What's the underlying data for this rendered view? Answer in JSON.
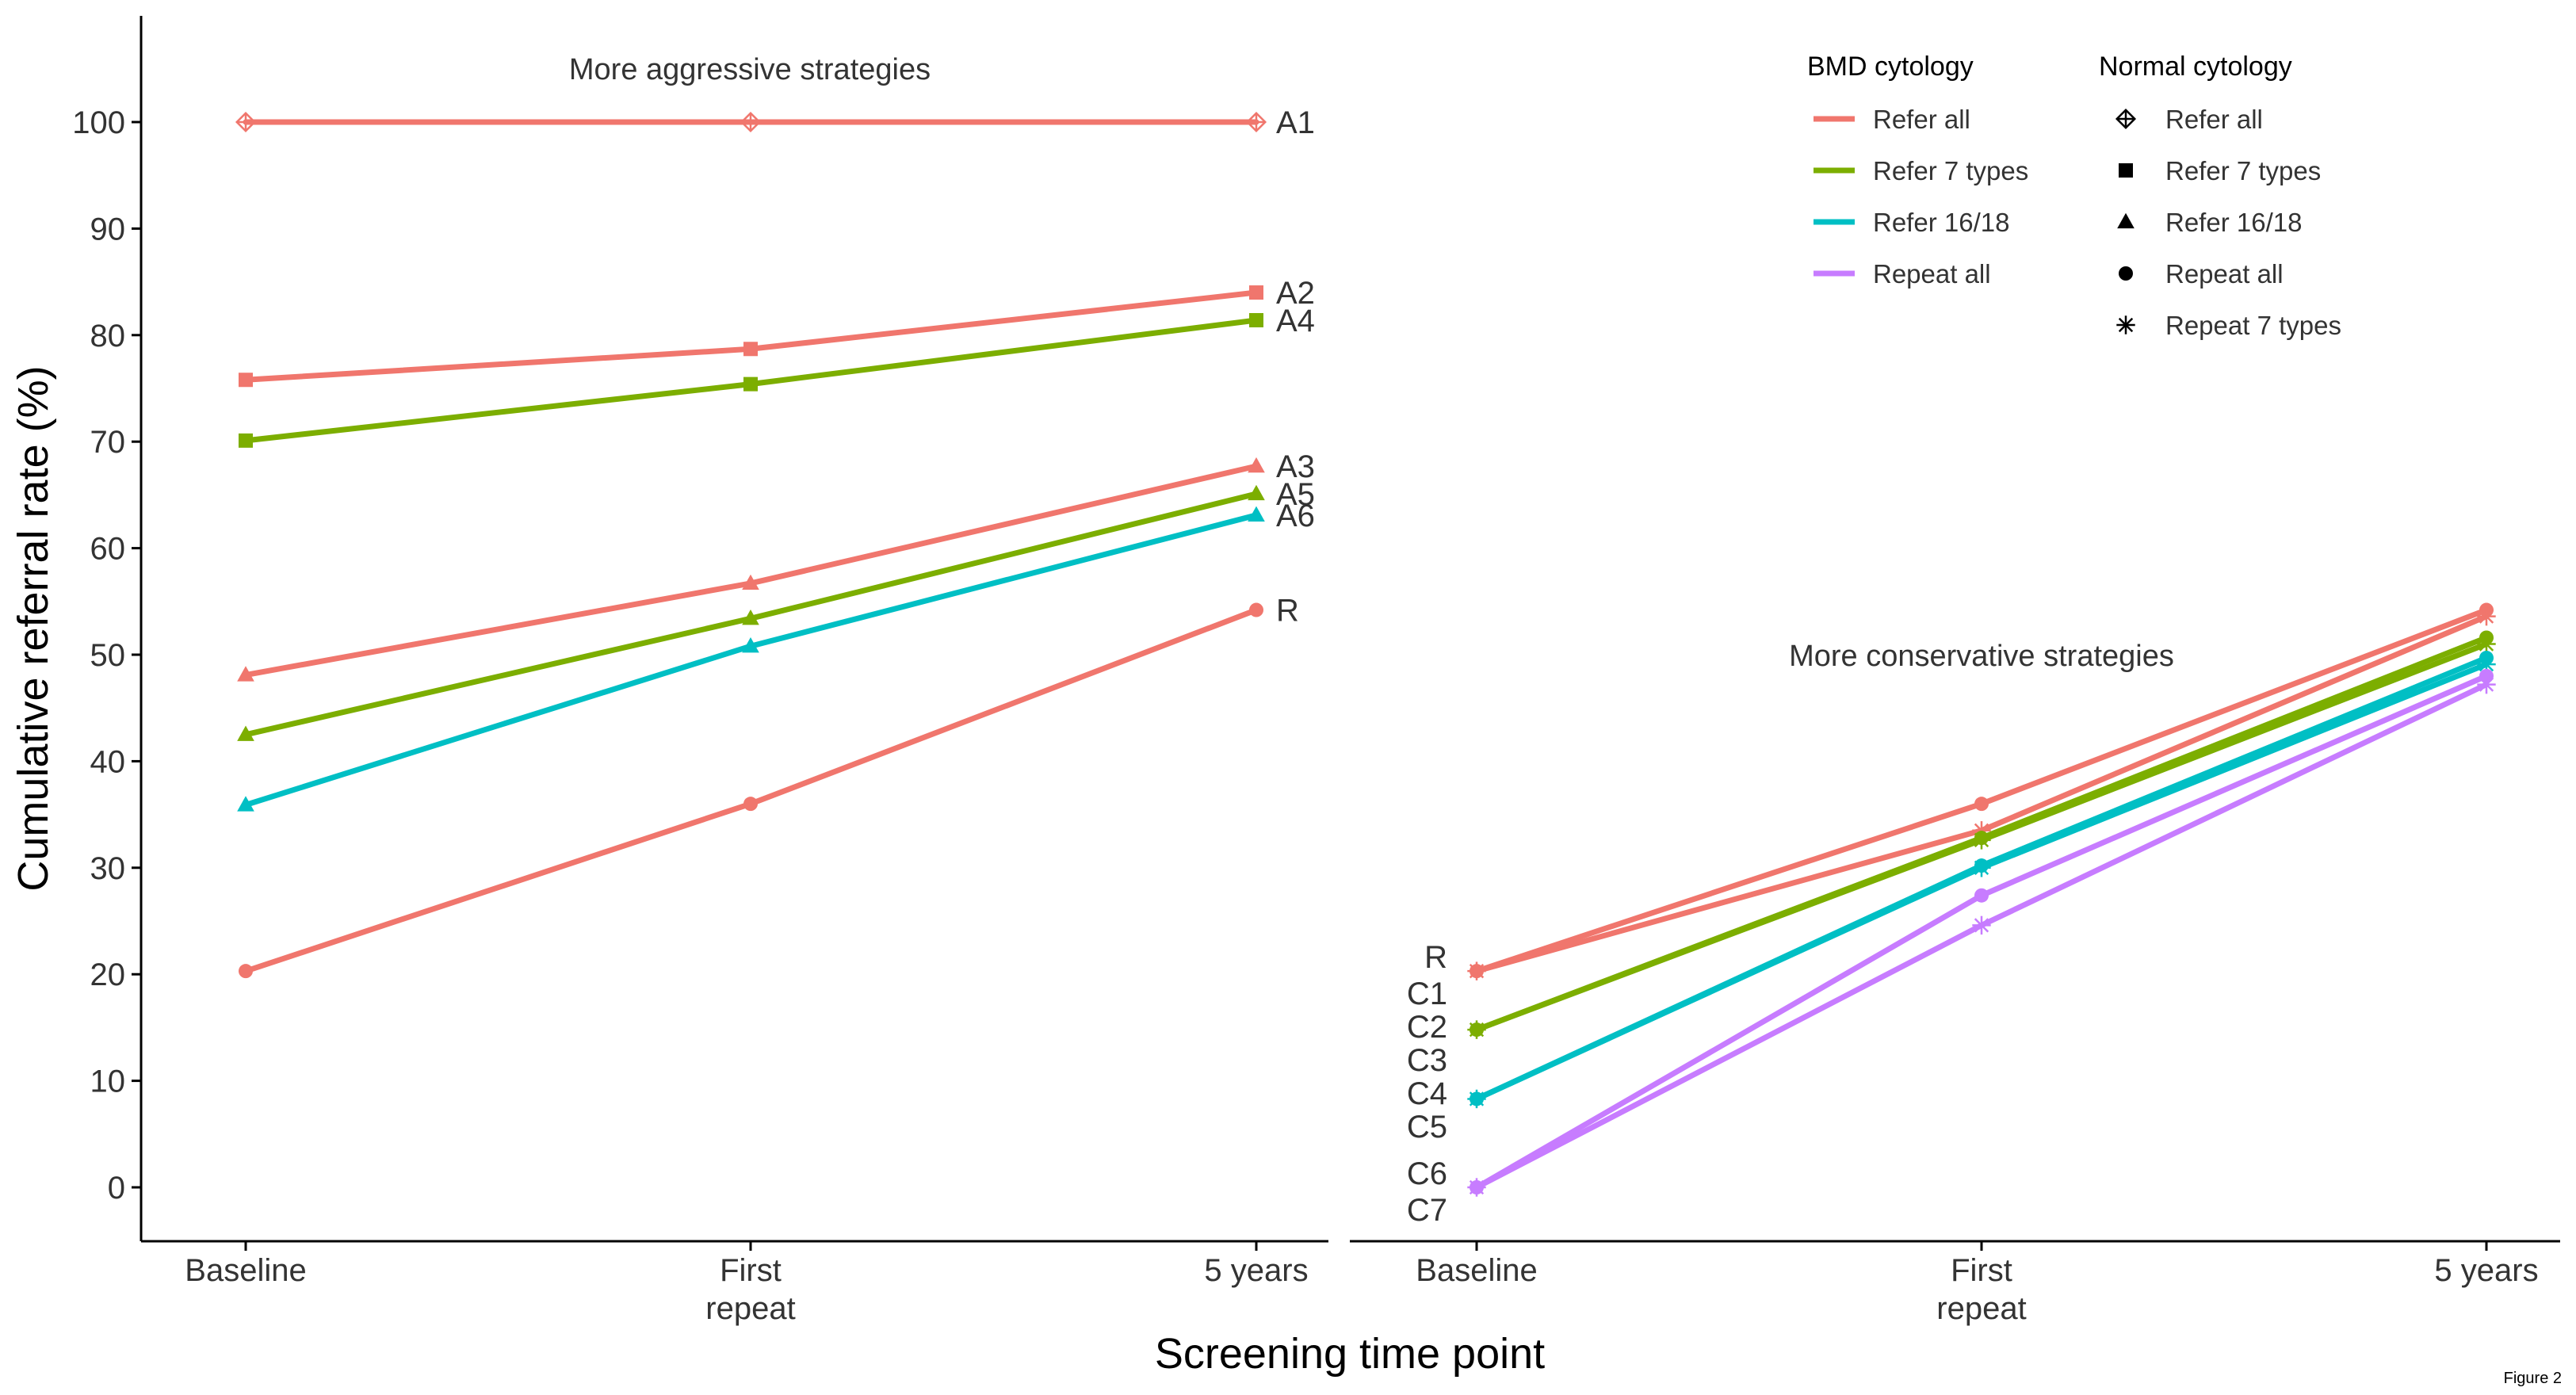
{
  "figure_label": "Figure 2",
  "shared_axes": {
    "ylabel": "Cumulative referral rate (%)",
    "xlabel": "Screening time point",
    "x_ticks": [
      "Baseline",
      "First\nrepeat",
      "5 years"
    ],
    "y_ticks": [
      0,
      10,
      20,
      30,
      40,
      50,
      60,
      70,
      80,
      90,
      100
    ],
    "ylim": [
      -5,
      110
    ]
  },
  "colors": {
    "refer_all": "#F0766D",
    "refer_7_types": "#7CAE00",
    "refer_16_18": "#00BFC4",
    "repeat_all": "#C77CFF",
    "axis": "#000000",
    "text": "#333333"
  },
  "legend": {
    "bmd": {
      "title": "BMD cytology",
      "items": [
        {
          "label": "Refer all",
          "color_key": "refer_all"
        },
        {
          "label": "Refer 7 types",
          "color_key": "refer_7_types"
        },
        {
          "label": "Refer 16/18",
          "color_key": "refer_16_18"
        },
        {
          "label": "Repeat all",
          "color_key": "repeat_all"
        }
      ]
    },
    "normal": {
      "title": "Normal cytology",
      "items": [
        {
          "label": "Refer all",
          "shape": "diamond-cross"
        },
        {
          "label": "Refer 7 types",
          "shape": "square"
        },
        {
          "label": "Refer 16/18",
          "shape": "triangle"
        },
        {
          "label": "Repeat all",
          "shape": "circle"
        },
        {
          "label": "Repeat 7 types",
          "shape": "asterisk"
        }
      ]
    }
  },
  "chart_data": [
    {
      "type": "line",
      "annotation": "More aggressive strategies",
      "categories": [
        "Baseline",
        "First repeat",
        "5 years"
      ],
      "series": [
        {
          "name": "A1",
          "bmd": "refer_all",
          "normal": "diamond-cross",
          "values": [
            100,
            100,
            100
          ]
        },
        {
          "name": "A2",
          "bmd": "refer_all",
          "normal": "square",
          "values": [
            75.8,
            78.7,
            84.0
          ]
        },
        {
          "name": "A4",
          "bmd": "refer_7_types",
          "normal": "square",
          "values": [
            70.1,
            75.4,
            81.4
          ]
        },
        {
          "name": "A3",
          "bmd": "refer_all",
          "normal": "triangle",
          "values": [
            48.1,
            56.7,
            67.7
          ]
        },
        {
          "name": "A5",
          "bmd": "refer_7_types",
          "normal": "triangle",
          "values": [
            42.5,
            53.4,
            65.1
          ]
        },
        {
          "name": "A6",
          "bmd": "refer_16_18",
          "normal": "triangle",
          "values": [
            35.9,
            50.8,
            63.1
          ]
        },
        {
          "name": "R",
          "bmd": "refer_all",
          "normal": "circle",
          "values": [
            20.3,
            36.0,
            54.2
          ]
        }
      ]
    },
    {
      "type": "line",
      "annotation": "More conservative strategies",
      "categories": [
        "Baseline",
        "First repeat",
        "5 years"
      ],
      "series": [
        {
          "name": "R",
          "bmd": "refer_all",
          "normal": "circle",
          "values": [
            20.3,
            36.0,
            54.2
          ]
        },
        {
          "name": "C1",
          "bmd": "refer_all",
          "normal": "asterisk",
          "values": [
            20.3,
            33.5,
            53.6
          ]
        },
        {
          "name": "C2",
          "bmd": "refer_7_types",
          "normal": "circle",
          "values": [
            14.8,
            32.8,
            51.6
          ]
        },
        {
          "name": "C3",
          "bmd": "refer_7_types",
          "normal": "asterisk",
          "values": [
            14.8,
            32.6,
            51.0
          ]
        },
        {
          "name": "C4",
          "bmd": "refer_16_18",
          "normal": "circle",
          "values": [
            8.3,
            30.2,
            49.7
          ]
        },
        {
          "name": "C5",
          "bmd": "refer_16_18",
          "normal": "asterisk",
          "values": [
            8.3,
            30.0,
            49.1
          ]
        },
        {
          "name": "C6",
          "bmd": "repeat_all",
          "normal": "circle",
          "values": [
            0,
            27.4,
            48.0
          ]
        },
        {
          "name": "C7",
          "bmd": "repeat_all",
          "normal": "asterisk",
          "values": [
            0,
            24.6,
            47.2
          ]
        }
      ],
      "left_labels": [
        "R",
        "C1",
        "C2",
        "C3",
        "C4",
        "C5",
        "C6",
        "C7"
      ]
    }
  ]
}
